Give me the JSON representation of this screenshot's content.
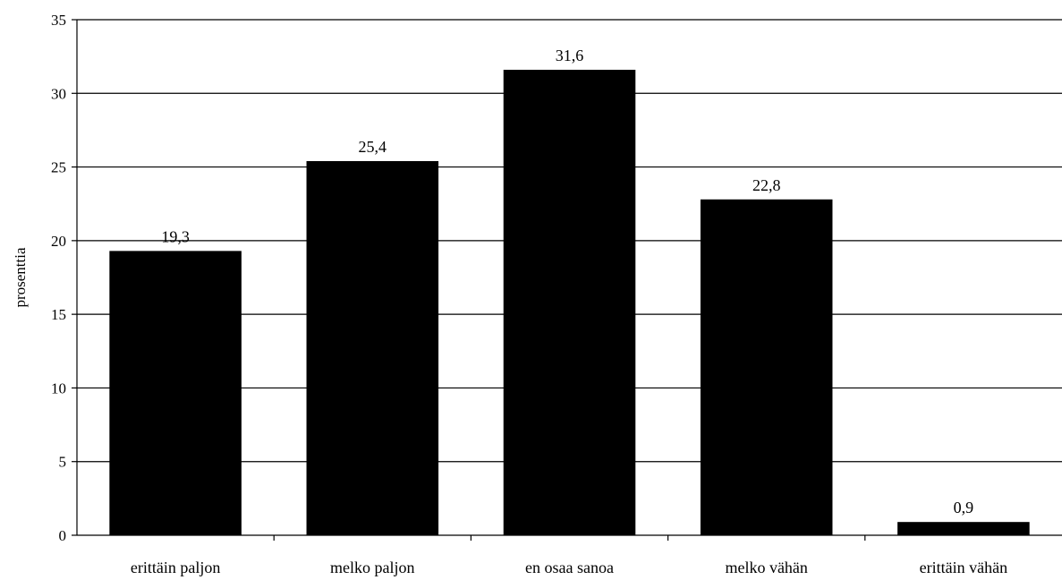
{
  "chart_data": {
    "type": "bar",
    "title": "",
    "xlabel": "",
    "ylabel": "prosenttia",
    "categories": [
      "erittäin paljon",
      "melko paljon",
      "en osaa sanoa",
      "melko vähän",
      "erittäin vähän"
    ],
    "values": [
      19.3,
      25.4,
      31.6,
      22.8,
      0.9
    ],
    "value_labels": [
      "19,3",
      "25,4",
      "31,6",
      "22,8",
      "0,9"
    ],
    "ylim": [
      0,
      35
    ],
    "yticks": [
      "0",
      "5",
      "10",
      "15",
      "20",
      "25",
      "30",
      "35"
    ],
    "grid": true,
    "legend": "none",
    "colors": {
      "bar": "#000000",
      "grid": "#000000",
      "background": "#ffffff"
    }
  }
}
